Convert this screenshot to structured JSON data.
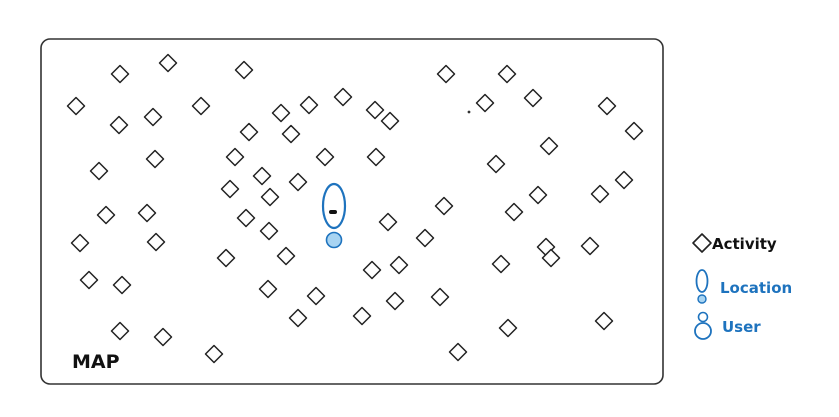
{
  "map": {
    "title": "MAP"
  },
  "legend": {
    "activity_label": "Activity",
    "location_label": "Location",
    "user_label": "User"
  },
  "colors": {
    "ink": "#222222",
    "accent": "#1e73be",
    "user_fill": "#a8d4f2",
    "background": "#ffffff"
  },
  "icons": {
    "activity": "diamond-icon",
    "location": "location-pin-icon",
    "user": "user-icon"
  }
}
